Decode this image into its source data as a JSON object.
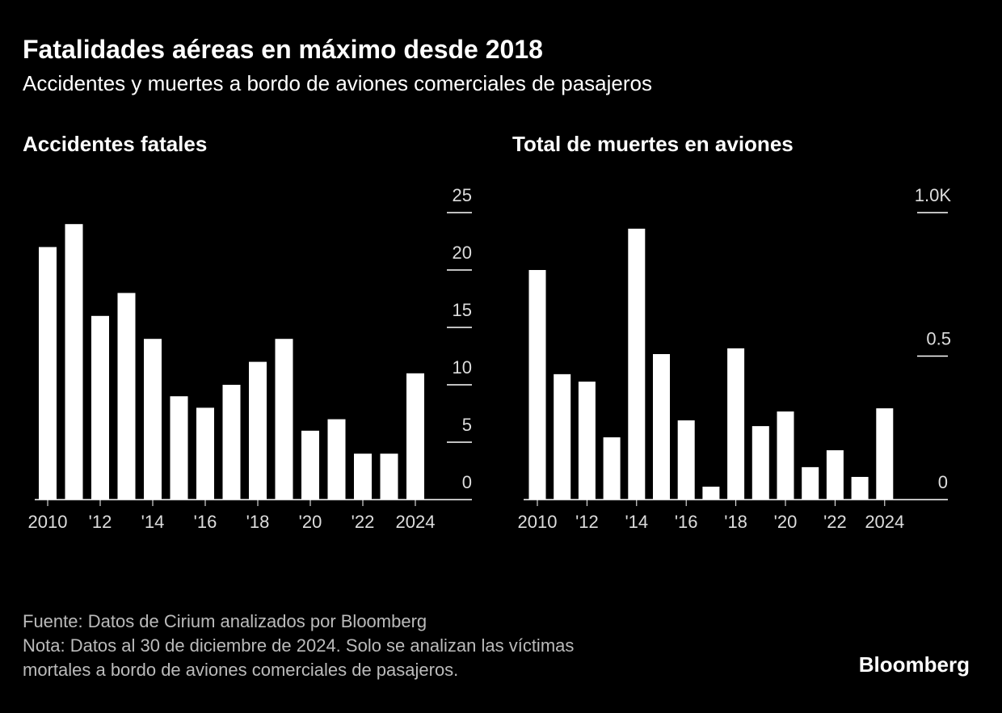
{
  "title": "Fatalidades aéreas en máximo desde 2018",
  "subtitle": "Accidentes y muertes a bordo de aviones comerciales de pasajeros",
  "source": "Fuente: Datos de Cirium analizados por Bloomberg",
  "note": [
    "Nota: Datos al 30 de diciembre de 2024. Solo se analizan las víctimas",
    "mortales a bordo de aviones comerciales de pasajeros."
  ],
  "logo": "Bloomberg",
  "chart_data": [
    {
      "type": "bar",
      "title": "Accidentes fatales",
      "categories": [
        "2010",
        null,
        "'12",
        null,
        "'14",
        null,
        "'16",
        null,
        "'18",
        null,
        "'20",
        null,
        "'22",
        null,
        "2024"
      ],
      "values": [
        22,
        24,
        16,
        18,
        14,
        9,
        8,
        10,
        12,
        14,
        6,
        7,
        4,
        4,
        11
      ],
      "color": "#ffffff",
      "ylim": [
        0,
        25
      ],
      "yticks": [
        0,
        5,
        10,
        15,
        20,
        25
      ]
    },
    {
      "type": "bar",
      "title": "Total de muertes en aviones",
      "categories": [
        "2010",
        null,
        "'12",
        null,
        "'14",
        null,
        "'16",
        null,
        "'18",
        null,
        "'20",
        null,
        "'22",
        null,
        "2024"
      ],
      "values": [
        0.8,
        0.437,
        0.411,
        0.217,
        0.944,
        0.507,
        0.276,
        0.045,
        0.527,
        0.256,
        0.307,
        0.113,
        0.172,
        0.079,
        0.318
      ],
      "color": "#ffffff",
      "ylim": [
        0,
        1
      ],
      "yticks": [
        0,
        {
          "value": 0.5,
          "label": "0.5"
        },
        {
          "value": 1,
          "label": "1.0K"
        }
      ]
    }
  ]
}
